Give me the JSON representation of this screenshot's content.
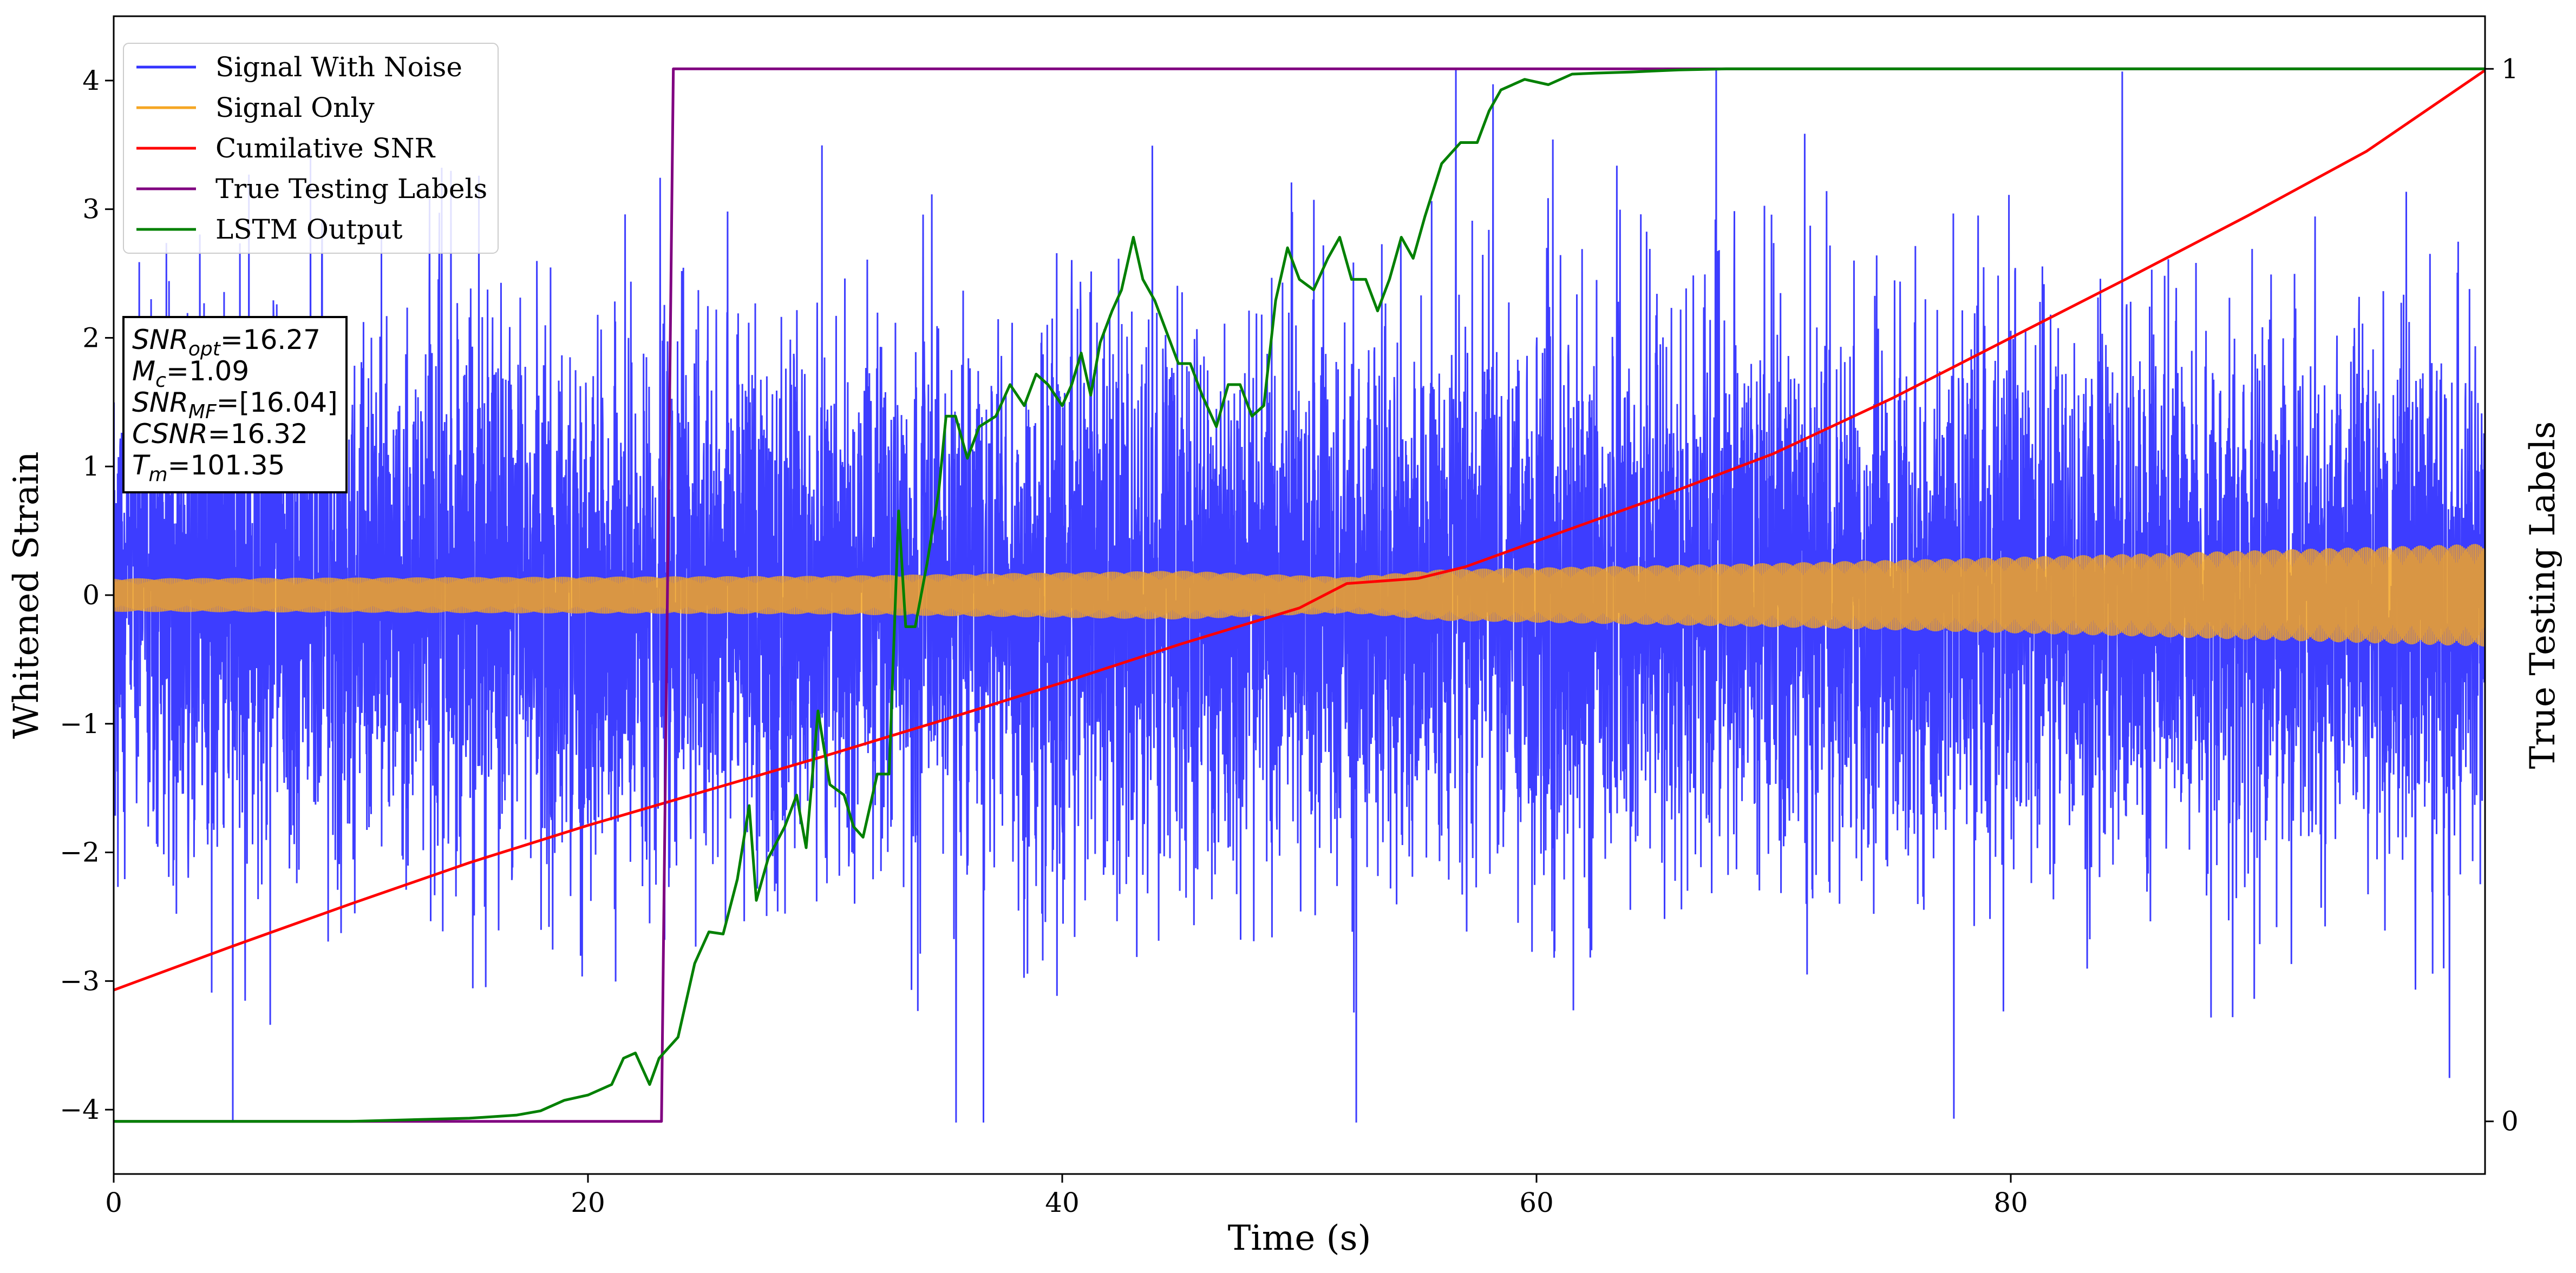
{
  "chart_data": {
    "type": "line",
    "xlabel": "Time (s)",
    "ylabel": "Whitened Strain",
    "y2label": "True Testing Labels",
    "xlim": [
      0,
      100
    ],
    "ylim": [
      -4.5,
      4.5
    ],
    "y2lim": [
      -0.05,
      1.05
    ],
    "x_ticks": [
      0,
      20,
      40,
      60,
      80
    ],
    "y_ticks": [
      -4,
      -3,
      -2,
      -1,
      0,
      1,
      2,
      3,
      4
    ],
    "y2_ticks": [
      0,
      1
    ],
    "legend_position": "top-left",
    "series": [
      {
        "name": "Signal With Noise",
        "color": "#3333ff",
        "axis": "left",
        "style": "dense-noise",
        "approx_range": [
          -4.1,
          4.1
        ],
        "notable_spikes": [
          [
            56.6,
            4.1
          ],
          [
            52.4,
            -4.1
          ],
          [
            77.6,
            -4.07
          ],
          [
            84.7,
            4.07
          ]
        ]
      },
      {
        "name": "Signal Only",
        "color": "#f5a623",
        "axis": "left",
        "style": "oscillation",
        "amplitude_envelope": [
          [
            0,
            0.13
          ],
          [
            30,
            0.15
          ],
          [
            45,
            0.19
          ],
          [
            52,
            0.14
          ],
          [
            56,
            0.2
          ],
          [
            70,
            0.25
          ],
          [
            85,
            0.32
          ],
          [
            100,
            0.4
          ]
        ]
      },
      {
        "name": "Cumilative SNR",
        "color": "#ff0000",
        "axis": "left",
        "points": [
          [
            0,
            -3.07
          ],
          [
            5,
            -2.73
          ],
          [
            10,
            -2.4
          ],
          [
            15,
            -2.08
          ],
          [
            20,
            -1.79
          ],
          [
            25,
            -1.52
          ],
          [
            30,
            -1.25
          ],
          [
            35,
            -0.97
          ],
          [
            40,
            -0.68
          ],
          [
            45,
            -0.38
          ],
          [
            50,
            -0.1
          ],
          [
            52,
            0.09
          ],
          [
            55,
            0.13
          ],
          [
            57,
            0.22
          ],
          [
            60,
            0.42
          ],
          [
            65,
            0.75
          ],
          [
            70,
            1.1
          ],
          [
            75,
            1.53
          ],
          [
            80,
            2.0
          ],
          [
            85,
            2.47
          ],
          [
            90,
            2.95
          ],
          [
            95,
            3.45
          ],
          [
            100,
            4.08
          ]
        ]
      },
      {
        "name": "True Testing Labels",
        "color": "#800080",
        "axis": "right",
        "points": [
          [
            0,
            0
          ],
          [
            23.1,
            0
          ],
          [
            23.6,
            1
          ],
          [
            100,
            1
          ]
        ]
      },
      {
        "name": "LSTM Output",
        "color": "#008000",
        "axis": "right",
        "points": [
          [
            0,
            0
          ],
          [
            10,
            0
          ],
          [
            15,
            0.003
          ],
          [
            17,
            0.006
          ],
          [
            18,
            0.01
          ],
          [
            19,
            0.02
          ],
          [
            20,
            0.025
          ],
          [
            21,
            0.035
          ],
          [
            21.5,
            0.06
          ],
          [
            22,
            0.065
          ],
          [
            22.6,
            0.035
          ],
          [
            23,
            0.06
          ],
          [
            23.8,
            0.08
          ],
          [
            24.5,
            0.15
          ],
          [
            25.1,
            0.18
          ],
          [
            25.7,
            0.178
          ],
          [
            26.3,
            0.23
          ],
          [
            26.8,
            0.3
          ],
          [
            27.1,
            0.21
          ],
          [
            27.6,
            0.25
          ],
          [
            28.3,
            0.28
          ],
          [
            28.8,
            0.31
          ],
          [
            29.2,
            0.26
          ],
          [
            29.7,
            0.39
          ],
          [
            30.2,
            0.32
          ],
          [
            30.8,
            0.31
          ],
          [
            31.2,
            0.28
          ],
          [
            31.6,
            0.27
          ],
          [
            32.2,
            0.33
          ],
          [
            32.7,
            0.33
          ],
          [
            33.1,
            0.58
          ],
          [
            33.4,
            0.47
          ],
          [
            33.8,
            0.47
          ],
          [
            34.3,
            0.53
          ],
          [
            34.8,
            0.6
          ],
          [
            35.1,
            0.67
          ],
          [
            35.5,
            0.67
          ],
          [
            36.0,
            0.63
          ],
          [
            36.5,
            0.66
          ],
          [
            37.2,
            0.67
          ],
          [
            37.8,
            0.7
          ],
          [
            38.4,
            0.68
          ],
          [
            38.9,
            0.71
          ],
          [
            39.4,
            0.7
          ],
          [
            40.0,
            0.68
          ],
          [
            40.4,
            0.7
          ],
          [
            40.8,
            0.73
          ],
          [
            41.2,
            0.69
          ],
          [
            41.6,
            0.74
          ],
          [
            42.1,
            0.77
          ],
          [
            42.5,
            0.79
          ],
          [
            43.0,
            0.84
          ],
          [
            43.4,
            0.8
          ],
          [
            43.9,
            0.78
          ],
          [
            44.4,
            0.75
          ],
          [
            44.9,
            0.72
          ],
          [
            45.4,
            0.72
          ],
          [
            45.9,
            0.69
          ],
          [
            46.5,
            0.66
          ],
          [
            47.0,
            0.7
          ],
          [
            47.5,
            0.7
          ],
          [
            48.0,
            0.67
          ],
          [
            48.5,
            0.68
          ],
          [
            49.0,
            0.78
          ],
          [
            49.5,
            0.83
          ],
          [
            50.0,
            0.8
          ],
          [
            50.6,
            0.79
          ],
          [
            51.2,
            0.82
          ],
          [
            51.7,
            0.84
          ],
          [
            52.2,
            0.8
          ],
          [
            52.8,
            0.8
          ],
          [
            53.3,
            0.77
          ],
          [
            53.8,
            0.8
          ],
          [
            54.3,
            0.84
          ],
          [
            54.8,
            0.82
          ],
          [
            55.3,
            0.86
          ],
          [
            56.0,
            0.91
          ],
          [
            56.8,
            0.93
          ],
          [
            57.5,
            0.93
          ],
          [
            58.0,
            0.96
          ],
          [
            58.5,
            0.98
          ],
          [
            59.5,
            0.99
          ],
          [
            60.5,
            0.985
          ],
          [
            61.5,
            0.995
          ],
          [
            62.5,
            0.996
          ],
          [
            64,
            0.997
          ],
          [
            66,
            0.999
          ],
          [
            68,
            1.0
          ],
          [
            100,
            1.0
          ]
        ]
      }
    ],
    "annotation_lines": [
      {
        "label": "SNR",
        "subscript": "opt",
        "value": "=16.27"
      },
      {
        "label": "M",
        "subscript": "c",
        "value": "=1.09"
      },
      {
        "label": "SNR",
        "subscript": "MF",
        "value": "=[16.04]"
      },
      {
        "label": "CSNR",
        "subscript": "",
        "value": "=16.32"
      },
      {
        "label": "T",
        "subscript": "m",
        "value": "=101.35"
      }
    ]
  }
}
